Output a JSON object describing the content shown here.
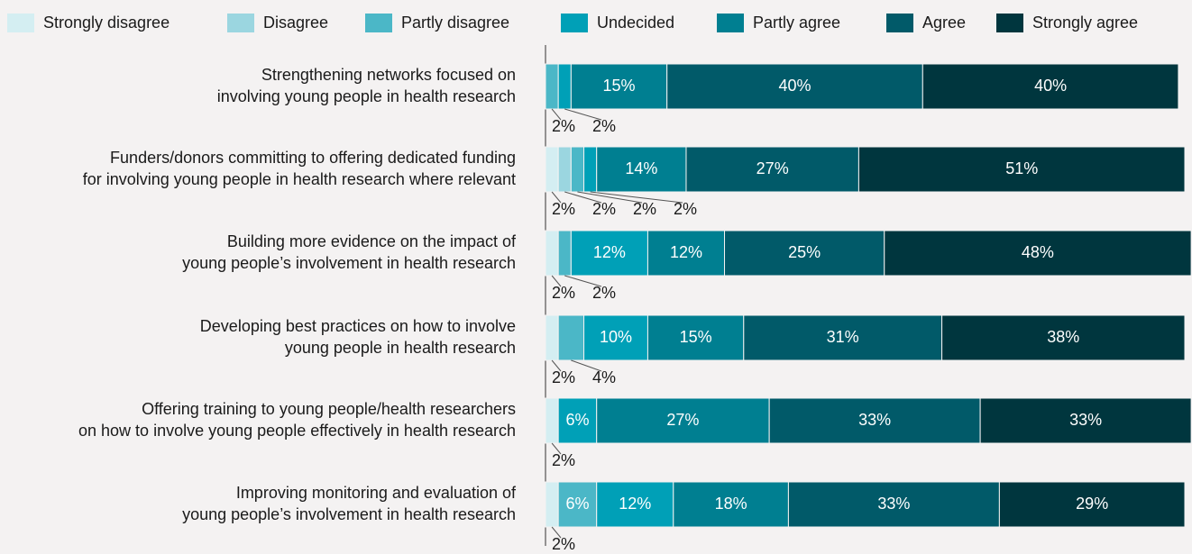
{
  "chart_data": {
    "type": "stacked-bar-horizontal",
    "categories": [
      [
        "Strengthening networks focused on",
        "involving young people in health research"
      ],
      [
        "Funders/donors committing to offering dedicated funding",
        "for involving young people in health research where relevant"
      ],
      [
        "Building more evidence on the impact of",
        "young people’s involvement in health research"
      ],
      [
        "Developing best practices on how to involve",
        "young people in health research"
      ],
      [
        "Offering training to young people/health researchers",
        "on how to involve young people effectively in health research"
      ],
      [
        "Improving monitoring and evaluation of",
        "young people’s involvement in health research"
      ]
    ],
    "series": [
      {
        "name": "Strongly disagree",
        "color": "#d4eef2",
        "values": [
          null,
          2,
          2,
          2,
          2,
          2
        ],
        "value_labels": [
          null,
          "2%",
          "2%",
          "2%",
          "2%",
          "2%"
        ]
      },
      {
        "name": "Disagree",
        "color": "#9bd6e0",
        "values": [
          null,
          2,
          null,
          null,
          null,
          null
        ],
        "value_labels": [
          null,
          "2%",
          null,
          null,
          null,
          null
        ]
      },
      {
        "name": "Partly disagree",
        "color": "#4bb7c7",
        "values": [
          2,
          2,
          2,
          4,
          null,
          6
        ],
        "value_labels": [
          "2%",
          "2%",
          "2%",
          "4%",
          null,
          "6%"
        ]
      },
      {
        "name": "Undecided",
        "color": "#00a0b7",
        "values": [
          2,
          2,
          12,
          10,
          6,
          12
        ],
        "value_labels": [
          "2%",
          "2%",
          "12%",
          "10%",
          "6%",
          "12%"
        ]
      },
      {
        "name": "Partly agree",
        "color": "#007f91",
        "values": [
          15,
          14,
          12,
          15,
          27,
          18
        ],
        "value_labels": [
          "15%",
          "14%",
          "12%",
          "15%",
          "27%",
          "18%"
        ]
      },
      {
        "name": "Agree",
        "color": "#015a69",
        "values": [
          40,
          27,
          25,
          31,
          33,
          33
        ],
        "value_labels": [
          "40%",
          "27%",
          "25%",
          "31%",
          "33%",
          "33%"
        ]
      },
      {
        "name": "Strongly agree",
        "color": "#00363e",
        "values": [
          40,
          51,
          48,
          38,
          33,
          29
        ],
        "value_labels": [
          "40%",
          "51%",
          "48%",
          "38%",
          "33%",
          "29%"
        ]
      }
    ]
  }
}
